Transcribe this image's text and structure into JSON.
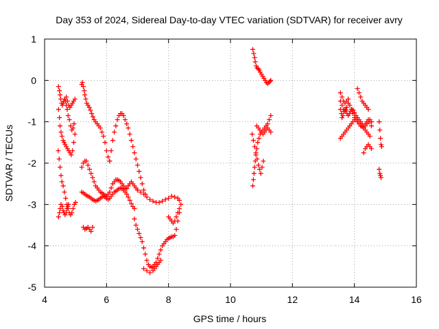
{
  "chart_data": {
    "type": "scatter",
    "title": "Day 353 of 2024, Sidereal Day-to-day VTEC variation (SDTVAR) for receiver avry",
    "xlabel": "GPS time / hours",
    "ylabel": "SDTVAR / TECUs",
    "xlim": [
      4,
      16
    ],
    "ylim": [
      -5,
      1
    ],
    "x_ticks": [
      "4",
      "6",
      "8",
      "10",
      "12",
      "14",
      "16"
    ],
    "y_ticks": [
      "1",
      "0",
      "-1",
      "-2",
      "-3",
      "-4",
      "-5"
    ],
    "grid": true,
    "marker": "plus",
    "color": "#ff0000",
    "series": [
      {
        "name": "SDTVAR",
        "x": [
          4.45,
          4.48,
          4.5,
          4.52,
          4.55,
          4.57,
          4.6,
          4.62,
          4.65,
          4.68,
          4.7,
          4.73,
          4.76,
          4.8,
          4.84,
          4.88,
          4.92,
          4.95,
          4.45,
          4.48,
          4.5,
          4.53,
          4.56,
          4.6,
          4.63,
          4.66,
          4.7,
          4.74,
          4.78,
          4.82,
          4.86,
          4.9,
          4.94,
          4.98,
          4.44,
          4.47,
          4.5,
          4.53,
          4.56,
          4.6,
          4.64,
          4.68,
          4.72,
          4.76,
          4.8,
          4.84,
          4.88,
          4.92,
          4.96,
          5.0,
          4.45,
          4.48,
          4.5,
          4.53,
          4.57,
          4.6,
          4.63,
          4.66,
          4.7,
          4.72,
          4.75,
          4.77,
          4.7,
          4.74,
          4.78,
          4.82,
          4.86,
          4.9,
          4.94,
          4.98,
          5.2,
          5.22,
          5.25,
          5.28,
          5.3,
          5.33,
          5.36,
          5.4,
          5.44,
          5.48,
          5.52,
          5.56,
          5.6,
          5.65,
          5.7,
          5.75,
          5.8,
          5.85,
          5.9,
          5.95,
          6.0,
          6.05,
          6.1,
          6.1,
          6.15,
          6.2,
          6.25,
          6.3,
          6.35,
          6.4,
          6.45,
          6.5,
          6.55,
          6.6,
          6.65,
          6.7,
          6.75,
          6.8,
          6.85,
          6.9,
          6.95,
          7.0,
          7.05,
          7.1,
          7.15,
          7.2,
          7.25,
          5.2,
          5.25,
          5.3,
          5.35,
          5.4,
          5.45,
          5.5,
          5.55,
          5.6,
          5.65,
          5.7,
          5.75,
          5.8,
          5.85,
          5.9,
          5.95,
          6.0,
          6.05,
          6.1,
          6.15,
          6.2,
          6.25,
          6.3,
          6.35,
          6.4,
          6.45,
          6.5,
          6.55,
          6.6,
          6.65,
          6.7,
          6.75,
          6.8,
          6.85,
          6.9,
          6.95,
          7.0,
          7.0,
          7.1,
          7.2,
          7.3,
          7.4,
          7.5,
          7.6,
          7.7,
          7.8,
          7.9,
          8.0,
          8.1,
          8.2,
          8.3,
          8.35,
          5.2,
          5.25,
          5.3,
          5.35,
          5.4,
          5.45,
          5.5,
          5.55,
          5.6,
          5.65,
          5.7,
          5.75,
          5.8,
          5.85,
          5.9,
          5.95,
          6.0,
          6.05,
          6.1,
          6.15,
          6.2,
          6.25,
          6.3,
          6.35,
          6.4,
          6.45,
          6.5,
          6.55,
          6.6,
          6.65,
          6.7,
          6.75,
          6.8,
          6.85,
          6.9,
          5.25,
          5.3,
          5.35,
          5.4,
          5.45,
          5.5,
          5.55,
          6.9,
          6.95,
          7.0,
          7.05,
          7.1,
          7.15,
          7.2,
          7.25,
          7.3,
          7.35,
          7.4,
          7.45,
          7.5,
          7.55,
          7.6,
          7.65,
          7.7,
          7.75,
          7.8,
          7.85,
          7.9,
          7.95,
          8.0,
          8.05,
          8.1,
          8.15,
          8.2,
          8.25,
          8.3,
          8.35,
          8.4,
          7.2,
          7.3,
          7.4,
          7.5,
          7.55,
          7.6,
          7.65,
          7.7,
          7.75,
          8.0,
          8.05,
          8.1,
          8.15,
          8.2,
          8.25,
          8.3,
          8.35,
          10.72,
          10.75,
          10.78,
          10.8,
          10.83,
          10.86,
          10.9,
          10.93,
          10.96,
          11.0,
          11.04,
          11.08,
          11.12,
          11.16,
          11.2,
          11.24,
          11.28,
          11.3,
          10.72,
          10.74,
          10.76,
          10.78,
          10.8,
          10.82,
          10.85,
          10.88,
          10.92,
          10.96,
          11.0,
          11.05,
          11.1,
          11.15,
          11.2,
          11.25,
          11.3,
          10.85,
          10.9,
          10.95,
          11.0,
          11.05,
          11.1,
          11.15,
          11.2,
          11.25,
          11.3,
          10.7,
          10.74,
          10.78,
          10.82,
          10.86,
          10.9,
          10.94,
          10.98,
          11.02,
          11.06,
          13.55,
          13.58,
          13.6,
          13.63,
          13.66,
          13.7,
          13.73,
          13.76,
          13.8,
          13.84,
          13.88,
          13.92,
          13.96,
          14.0,
          14.05,
          14.1,
          14.15,
          14.2,
          14.25,
          14.3,
          14.35,
          14.4,
          14.45,
          14.5,
          14.55,
          13.55,
          13.6,
          13.65,
          13.7,
          13.75,
          13.8,
          13.85,
          13.9,
          13.95,
          14.0,
          14.05,
          14.1,
          14.15,
          14.2,
          14.25,
          14.3,
          14.35,
          14.4,
          14.45,
          14.5,
          14.55,
          13.55,
          13.6,
          13.65,
          13.7,
          13.75,
          13.8,
          13.85,
          13.9,
          13.95,
          14.0,
          14.05,
          14.1,
          14.15,
          14.2,
          14.25,
          14.3,
          14.35,
          14.4,
          14.45,
          14.5,
          13.55,
          13.6,
          13.65,
          13.7,
          13.75,
          13.8,
          14.1,
          14.15,
          14.2,
          14.25,
          14.3,
          14.35,
          14.4,
          14.45,
          14.3,
          14.35,
          14.4,
          14.45,
          14.5,
          14.55,
          14.8,
          14.82,
          14.84,
          14.86,
          14.88,
          14.8,
          14.82,
          14.84,
          14.86
        ],
        "y": [
          -0.15,
          -0.25,
          -0.35,
          -0.45,
          -0.55,
          -0.6,
          -0.55,
          -0.5,
          -0.45,
          -0.5,
          -0.6,
          -0.7,
          -0.85,
          -0.95,
          -1.1,
          -1.2,
          -1.15,
          -1.05,
          -0.7,
          -0.9,
          -1.1,
          -1.25,
          -1.35,
          -1.45,
          -1.5,
          -1.55,
          -1.6,
          -1.65,
          -1.7,
          -1.75,
          -1.8,
          -1.7,
          -1.5,
          -1.3,
          -1.7,
          -1.9,
          -2.1,
          -2.3,
          -2.45,
          -2.55,
          -2.7,
          -2.85,
          -3.0,
          -3.1,
          -3.2,
          -3.25,
          -3.2,
          -3.1,
          -3.0,
          -2.95,
          -3.3,
          -3.2,
          -3.1,
          -3.0,
          -3.05,
          -3.15,
          -3.2,
          -3.25,
          -3.2,
          -3.1,
          -3.05,
          -3.0,
          -0.4,
          -0.5,
          -0.6,
          -0.65,
          -0.6,
          -0.55,
          -0.5,
          -0.45,
          -0.1,
          -0.05,
          -0.15,
          -0.25,
          -0.35,
          -0.45,
          -0.55,
          -0.6,
          -0.65,
          -0.72,
          -0.8,
          -0.88,
          -0.95,
          -1.0,
          -1.05,
          -1.1,
          -1.15,
          -1.25,
          -1.35,
          -1.5,
          -1.7,
          -1.85,
          -1.95,
          -1.95,
          -1.7,
          -1.45,
          -1.25,
          -1.1,
          -0.95,
          -0.85,
          -0.8,
          -0.8,
          -0.85,
          -0.95,
          -1.05,
          -1.15,
          -1.3,
          -1.45,
          -1.6,
          -1.75,
          -1.9,
          -2.05,
          -2.2,
          -2.35,
          -2.5,
          -2.65,
          -2.75,
          -2.1,
          -2.0,
          -1.95,
          -1.95,
          -2.05,
          -2.15,
          -2.25,
          -2.35,
          -2.45,
          -2.55,
          -2.6,
          -2.65,
          -2.7,
          -2.72,
          -2.75,
          -2.78,
          -2.8,
          -2.75,
          -2.7,
          -2.6,
          -2.5,
          -2.45,
          -2.4,
          -2.4,
          -2.42,
          -2.45,
          -2.5,
          -2.55,
          -2.6,
          -2.62,
          -2.55,
          -2.5,
          -2.45,
          -2.5,
          -2.55,
          -2.6,
          -2.65,
          -2.65,
          -2.7,
          -2.75,
          -2.82,
          -2.88,
          -2.92,
          -2.95,
          -2.95,
          -2.92,
          -2.88,
          -2.85,
          -2.8,
          -2.82,
          -2.85,
          -2.9,
          -2.7,
          -2.72,
          -2.75,
          -2.78,
          -2.8,
          -2.82,
          -2.85,
          -2.88,
          -2.9,
          -2.92,
          -2.9,
          -2.88,
          -2.85,
          -2.82,
          -2.8,
          -2.82,
          -2.85,
          -2.88,
          -2.85,
          -2.8,
          -2.75,
          -2.7,
          -2.68,
          -2.65,
          -2.62,
          -2.6,
          -2.62,
          -2.65,
          -2.7,
          -2.75,
          -2.82,
          -2.9,
          -2.98,
          -3.05,
          -3.1,
          -3.55,
          -3.6,
          -3.58,
          -3.55,
          -3.6,
          -3.65,
          -3.55,
          -3.35,
          -3.5,
          -3.6,
          -3.7,
          -3.8,
          -3.9,
          -4.05,
          -4.2,
          -4.35,
          -4.45,
          -4.5,
          -4.52,
          -4.5,
          -4.45,
          -4.4,
          -4.3,
          -4.2,
          -4.1,
          -4.0,
          -3.95,
          -3.9,
          -3.85,
          -3.82,
          -3.8,
          -3.78,
          -3.78,
          -3.75,
          -3.6,
          -3.4,
          -3.2,
          -3.0,
          -4.55,
          -4.6,
          -4.65,
          -4.6,
          -4.55,
          -4.5,
          -4.45,
          -4.4,
          -4.35,
          -3.3,
          -3.35,
          -3.4,
          -3.45,
          -3.4,
          -3.3,
          -3.2,
          -3.1,
          0.75,
          0.65,
          0.55,
          0.45,
          0.35,
          0.3,
          0.28,
          0.25,
          0.2,
          0.15,
          0.1,
          0.05,
          0.0,
          -0.05,
          -0.08,
          -0.05,
          -0.02,
          0.0,
          -2.55,
          -2.4,
          -2.25,
          -2.1,
          -1.95,
          -1.8,
          -1.65,
          -1.5,
          -1.4,
          -1.3,
          -1.25,
          -1.2,
          -1.15,
          -1.1,
          -1.05,
          -0.95,
          -0.85,
          -1.1,
          -1.15,
          -1.2,
          -1.25,
          -1.3,
          -1.25,
          -1.2,
          -1.15,
          -1.2,
          -1.25,
          -1.3,
          -1.45,
          -1.6,
          -1.75,
          -1.9,
          -2.05,
          -2.15,
          -2.25,
          -2.1,
          -1.95,
          -0.7,
          -0.8,
          -0.9,
          -0.85,
          -0.75,
          -0.7,
          -0.72,
          -0.8,
          -0.85,
          -0.8,
          -0.75,
          -0.7,
          -0.72,
          -0.78,
          -0.85,
          -0.9,
          -0.95,
          -1.0,
          -1.05,
          -1.1,
          -1.05,
          -1.0,
          -0.95,
          -1.0,
          -1.1,
          -0.5,
          -0.6,
          -0.7,
          -0.75,
          -0.65,
          -0.55,
          -0.6,
          -0.7,
          -0.8,
          -0.9,
          -0.95,
          -1.0,
          -1.05,
          -1.1,
          -1.12,
          -1.15,
          -1.1,
          -1.05,
          -1.0,
          -0.95,
          -1.0,
          -1.4,
          -1.35,
          -1.3,
          -1.25,
          -1.2,
          -1.15,
          -1.1,
          -1.05,
          -1.0,
          -0.95,
          -0.9,
          -0.95,
          -1.0,
          -1.05,
          -1.1,
          -1.15,
          -1.2,
          -1.25,
          -1.3,
          -1.35,
          -0.3,
          -0.4,
          -0.5,
          -0.55,
          -0.5,
          -0.45,
          -0.2,
          -0.3,
          -0.4,
          -0.5,
          -0.55,
          -0.6,
          -0.65,
          -0.7,
          -1.75,
          -1.65,
          -1.6,
          -1.55,
          -1.6,
          -1.65,
          -1.0,
          -1.2,
          -1.4,
          -1.55,
          -1.6,
          -2.15,
          -2.25,
          -2.3,
          -2.35
        ]
      }
    ]
  }
}
